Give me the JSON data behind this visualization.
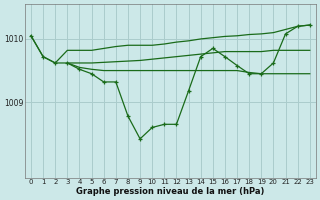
{
  "line_smooth": {
    "x": [
      0,
      1,
      2,
      3,
      4,
      5,
      6,
      7,
      8,
      9,
      10,
      11,
      12,
      13,
      14,
      15,
      16,
      17,
      18,
      19,
      20,
      21,
      22,
      23
    ],
    "y": [
      1010.05,
      1009.72,
      1009.62,
      1009.82,
      1009.82,
      1009.82,
      1009.85,
      1009.88,
      1009.9,
      1009.9,
      1009.9,
      1009.92,
      1009.95,
      1009.97,
      1010.0,
      1010.02,
      1010.04,
      1010.05,
      1010.07,
      1010.08,
      1010.1,
      1010.15,
      1010.2,
      1010.22
    ]
  },
  "line_flat_upper": {
    "x": [
      3,
      4,
      5,
      6,
      7,
      8,
      9,
      10,
      11,
      12,
      13,
      14,
      15,
      16,
      17,
      18,
      19,
      20,
      21,
      22,
      23
    ],
    "y": [
      1009.62,
      1009.62,
      1009.62,
      1009.63,
      1009.64,
      1009.65,
      1009.66,
      1009.68,
      1009.7,
      1009.72,
      1009.74,
      1009.76,
      1009.78,
      1009.8,
      1009.8,
      1009.8,
      1009.8,
      1009.82,
      1009.82,
      1009.82,
      1009.82
    ]
  },
  "line_flat_lower": {
    "x": [
      3,
      4,
      5,
      6,
      7,
      8,
      9,
      10,
      11,
      12,
      13,
      14,
      15,
      16,
      17,
      18,
      19,
      20,
      21,
      22,
      23
    ],
    "y": [
      1009.62,
      1009.55,
      1009.52,
      1009.5,
      1009.5,
      1009.5,
      1009.5,
      1009.5,
      1009.5,
      1009.5,
      1009.5,
      1009.5,
      1009.5,
      1009.5,
      1009.5,
      1009.47,
      1009.45,
      1009.45,
      1009.45,
      1009.45,
      1009.45
    ]
  },
  "line_measured": {
    "x": [
      0,
      1,
      2,
      3,
      4,
      5,
      6,
      7,
      8,
      9,
      10,
      11,
      12,
      13,
      14,
      15,
      16,
      17,
      18,
      19,
      20,
      21,
      22,
      23
    ],
    "y": [
      1010.05,
      1009.72,
      1009.62,
      1009.62,
      1009.52,
      1009.45,
      1009.32,
      1009.32,
      1008.78,
      1008.42,
      1008.6,
      1008.65,
      1008.65,
      1009.18,
      1009.72,
      1009.85,
      1009.72,
      1009.58,
      1009.45,
      1009.45,
      1009.62,
      1010.08,
      1010.2,
      1010.22
    ]
  },
  "background_color": "#cce8e8",
  "grid_color": "#aacccc",
  "line_color": "#1a6b1a",
  "xlabel_label": "Graphe pression niveau de la mer (hPa)",
  "xticks": [
    0,
    1,
    2,
    3,
    4,
    5,
    6,
    7,
    8,
    9,
    10,
    11,
    12,
    13,
    14,
    15,
    16,
    17,
    18,
    19,
    20,
    21,
    22,
    23
  ],
  "ylim": [
    1007.8,
    1010.55
  ],
  "yticks": [
    1009,
    1010
  ]
}
